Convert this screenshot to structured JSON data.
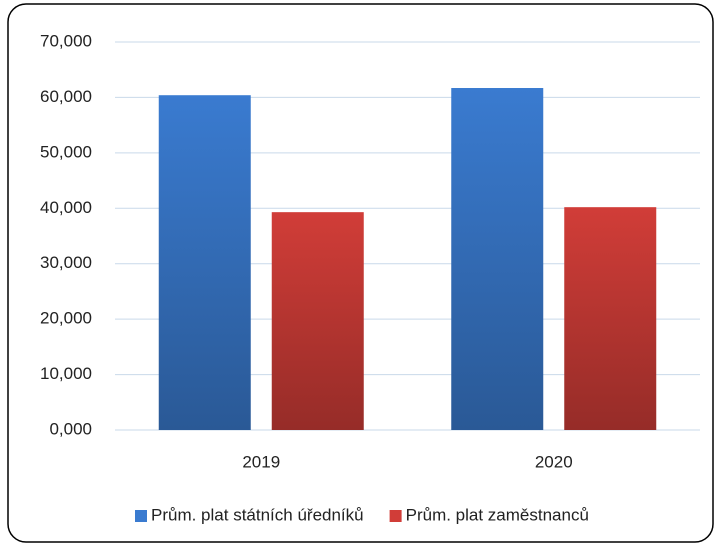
{
  "chart_data": {
    "type": "bar",
    "categories": [
      "2019",
      "2020"
    ],
    "series": [
      {
        "name": "Prům. plat státních úředníků",
        "color": "#3a7bd0",
        "values": [
          60400,
          61700
        ]
      },
      {
        "name": "Prům. plat zaměstnanců",
        "color": "#d13d38",
        "values": [
          39300,
          40200
        ]
      }
    ],
    "ylim": [
      0,
      70000
    ],
    "yticks": [
      {
        "value": 0,
        "label": "0,000"
      },
      {
        "value": 10000,
        "label": "10,000"
      },
      {
        "value": 20000,
        "label": "20,000"
      },
      {
        "value": 30000,
        "label": "30,000"
      },
      {
        "value": 40000,
        "label": "40,000"
      },
      {
        "value": 50000,
        "label": "50,000"
      },
      {
        "value": 60000,
        "label": "60,000"
      },
      {
        "value": 70000,
        "label": "70,000"
      }
    ],
    "grid": true,
    "legend": "bottom"
  }
}
